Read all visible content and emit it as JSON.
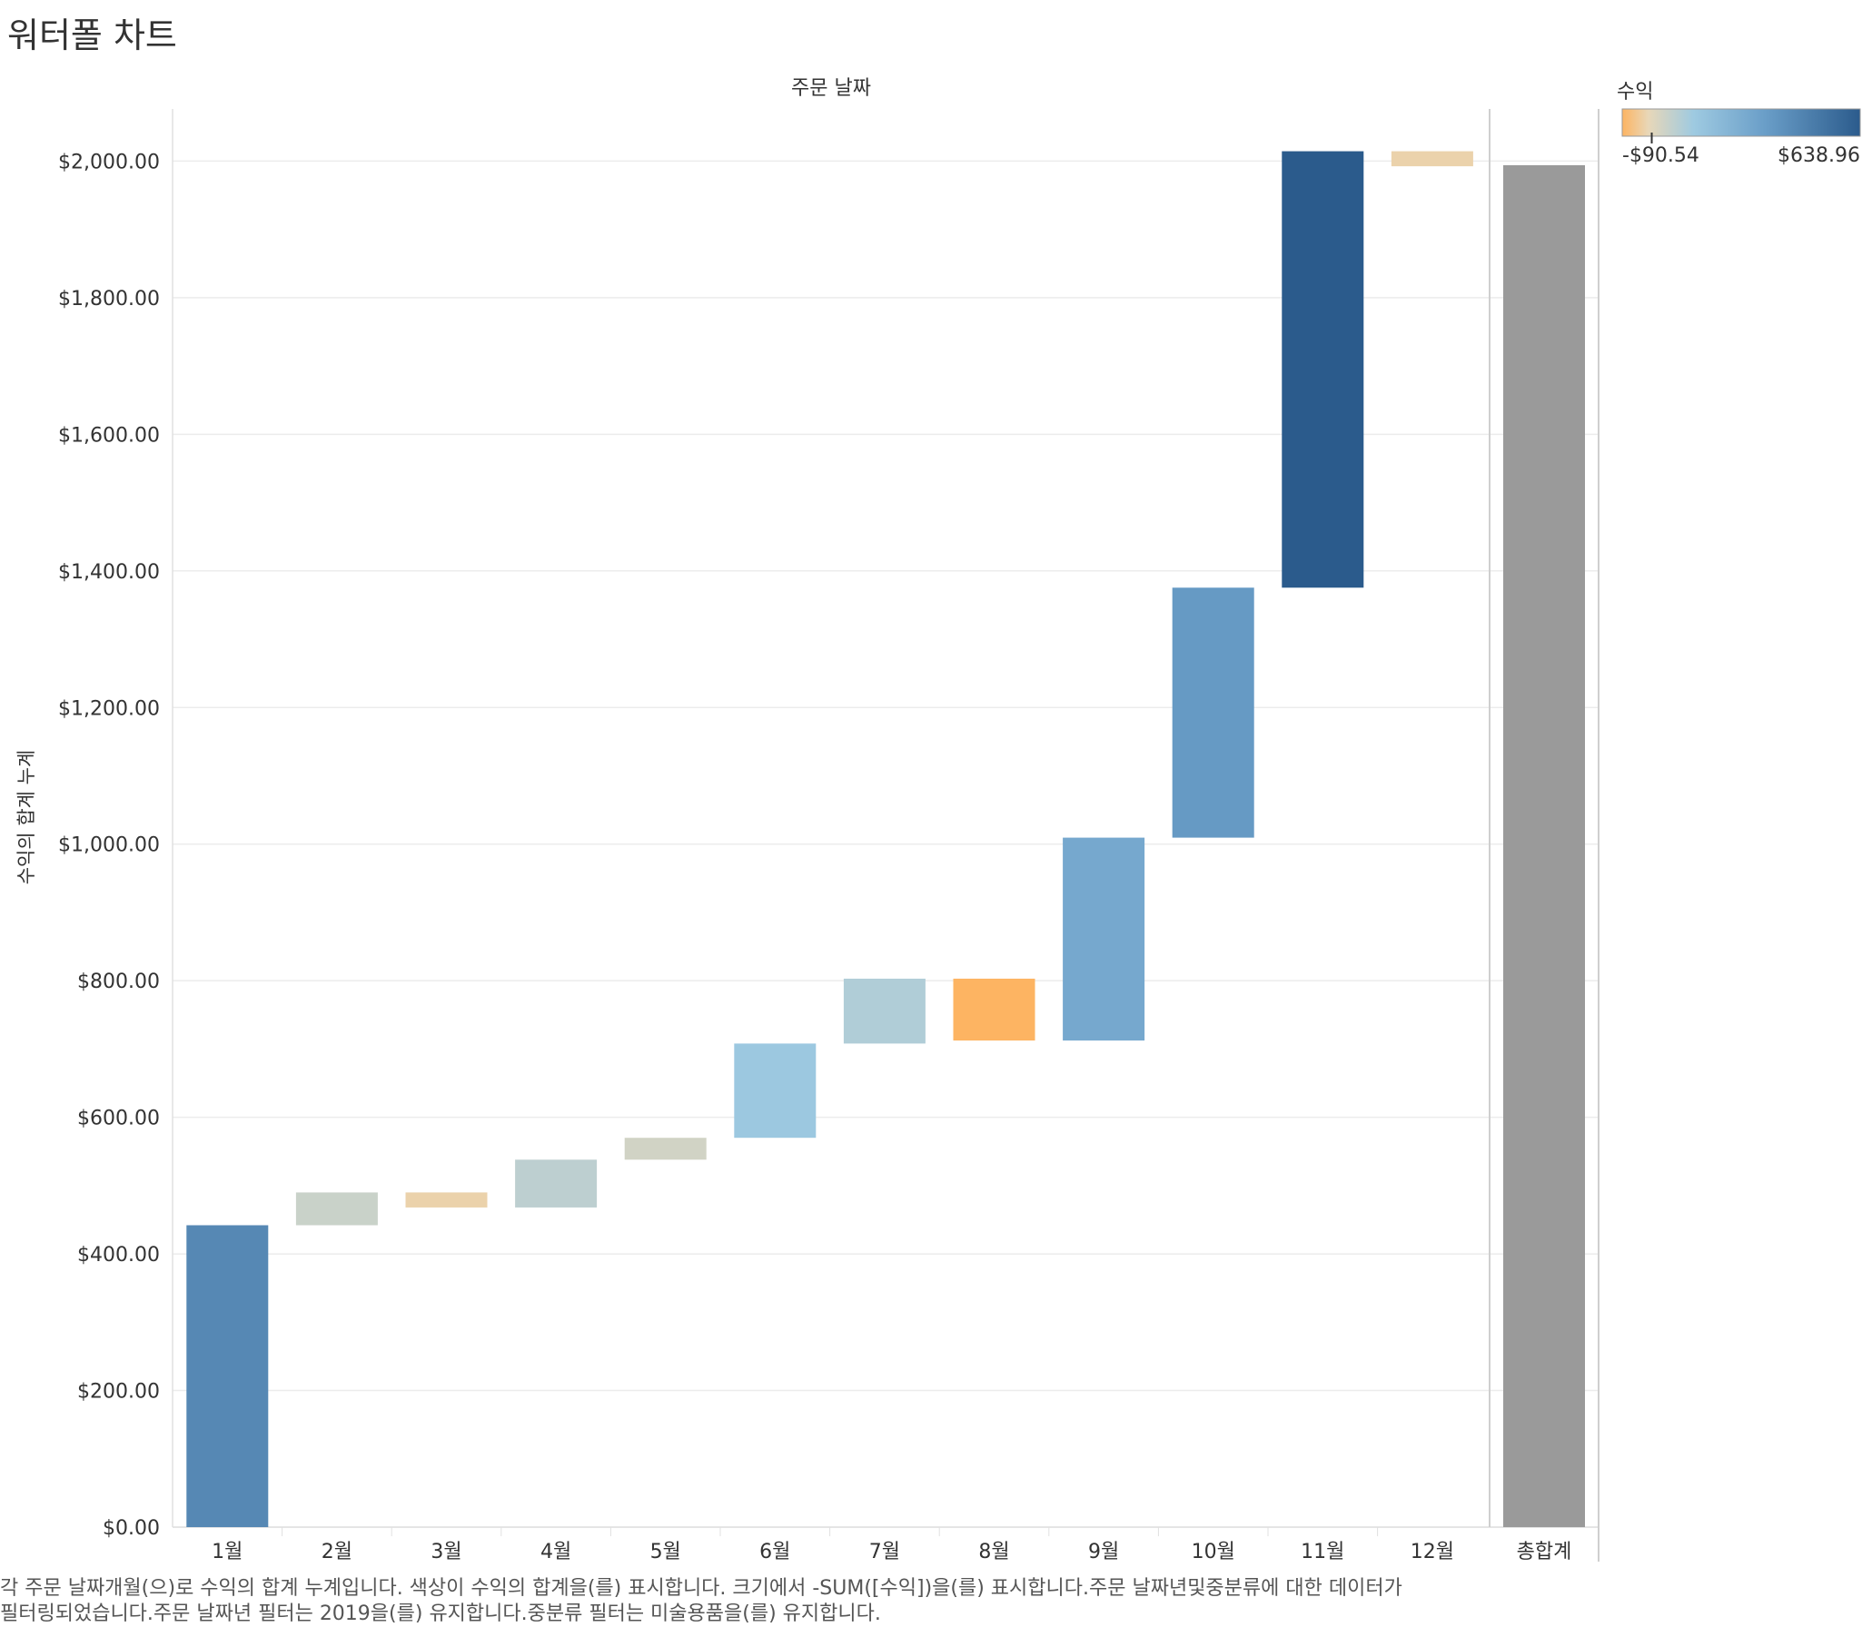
{
  "title": "워터폴 차트",
  "chart_data": {
    "type": "bar",
    "subtype": "waterfall",
    "column_header": "주문 날짜",
    "ylabel": "수익의 합계 누계",
    "categories": [
      "1월",
      "2월",
      "3월",
      "4월",
      "5월",
      "6월",
      "7월",
      "8월",
      "9월",
      "10월",
      "11월",
      "12월"
    ],
    "values": [
      442,
      48,
      -22,
      70,
      32,
      138,
      95,
      -90.54,
      297,
      366,
      638.96,
      -22
    ],
    "total": {
      "label": "총합계",
      "value": 1994,
      "color": "#9a9a9a"
    },
    "ylim": [
      0,
      2100
    ],
    "yticks": [
      "$0.00",
      "$200.00",
      "$400.00",
      "$600.00",
      "$800.00",
      "$1,000.00",
      "$1,200.00",
      "$1,400.00",
      "$1,600.00",
      "$1,800.00",
      "$2,000.00"
    ],
    "ytick_values": [
      0,
      200,
      400,
      600,
      800,
      1000,
      1200,
      1400,
      1600,
      1800,
      2000
    ],
    "grid": true,
    "legend": {
      "title": "수익",
      "min_label": "-$90.54",
      "max_label": "$638.96",
      "min": -90.54,
      "max": 638.96,
      "gradient": [
        "#fdb462",
        "#e8d7b8",
        "#9ecae1",
        "#6a9ec8",
        "#2b5b8c"
      ],
      "placement": "top-right"
    }
  },
  "caption": {
    "line1": "각 주문 날짜개월(으)로 수익의 합계 누계입니다. 색상이 수익의 합계을(를) 표시합니다. 크기에서 -SUM([수익])을(를) 표시합니다.주문 날짜년및중분류에 대한 데이터가",
    "line2": "필터링되었습니다.주문 날짜년 필터는 2019을(를) 유지합니다.중분류 필터는 미술용품을(를) 유지합니다."
  }
}
